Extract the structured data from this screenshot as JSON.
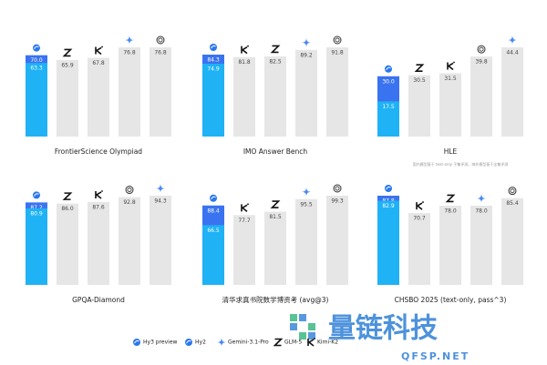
{
  "legend": [
    {
      "name": "Hy3 preview",
      "color": "#3a73f0"
    },
    {
      "name": "Hy2",
      "color": "#1fb2f5"
    },
    {
      "name": "Gemini-3.1-Pro"
    },
    {
      "name": "GLM-5"
    },
    {
      "name": "Kimi-K2"
    }
  ],
  "note": "国内模型基于 text-only 子集评测，海外模型基于全集评测",
  "watermark": {
    "title": "量链科技",
    "subtitle": "QFSP.NET"
  },
  "chart_data": [
    {
      "type": "bar",
      "title": "FrontierScience Olympiad",
      "categories": [
        "Hy3 preview",
        "GLM-5",
        "Kimi-K2",
        "Gemini-3.1-Pro",
        null
      ],
      "series": [
        {
          "name": "Hy3 preview",
          "values": [
            70.0,
            65.9,
            67.8,
            76.8,
            76.8
          ],
          "value_labels": [
            "70.0",
            "65.9",
            "67.8",
            "76.8",
            "76.8"
          ]
        },
        {
          "name": "Hy2",
          "values": [
            63.3,
            null,
            null,
            null,
            null
          ],
          "value_labels": [
            "63.3",
            null,
            null,
            null,
            null
          ]
        }
      ]
    },
    {
      "type": "bar",
      "title": "IMO Answer Bench",
      "categories": [
        "Hy3 preview",
        "Kimi-K2",
        "GLM-5",
        "Gemini-3.1-Pro",
        null
      ],
      "series": [
        {
          "name": "Hy3 preview",
          "values": [
            84.3,
            81.8,
            82.5,
            89.2,
            91.8
          ],
          "value_labels": [
            "84.3",
            "81.8",
            "82.5",
            "89.2",
            "91.8"
          ]
        },
        {
          "name": "Hy2",
          "values": [
            74.9,
            null,
            null,
            null,
            null
          ],
          "value_labels": [
            "74.9",
            null,
            null,
            null,
            null
          ]
        }
      ]
    },
    {
      "type": "bar",
      "title": "HLE",
      "categories": [
        "Hy3 preview",
        "GLM-5",
        "Kimi-K2",
        null,
        "Gemini-3.1-Pro"
      ],
      "series": [
        {
          "name": "Hy3 preview",
          "values": [
            30.0,
            30.5,
            31.5,
            39.8,
            44.4
          ],
          "value_labels": [
            "30.0",
            "30.5",
            "31.5",
            "39.8",
            "44.4"
          ]
        },
        {
          "name": "Hy2",
          "values": [
            17.5,
            null,
            null,
            null,
            null
          ],
          "value_labels": [
            "17.5",
            null,
            null,
            null,
            null
          ]
        }
      ]
    },
    {
      "type": "bar",
      "title": "GPQA-Diamond",
      "categories": [
        "Hy3 preview",
        "GLM-5",
        "Kimi-K2",
        null,
        "Gemini-3.1-Pro"
      ],
      "series": [
        {
          "name": "Hy3 preview",
          "values": [
            87.2,
            86.0,
            87.6,
            92.8,
            94.3
          ],
          "value_labels": [
            "87.2",
            "86.0",
            "87.6",
            "92.8",
            "94.3"
          ]
        },
        {
          "name": "Hy2",
          "values": [
            80.9,
            null,
            null,
            null,
            null
          ],
          "value_labels": [
            "80.9",
            null,
            null,
            null,
            null
          ]
        }
      ]
    },
    {
      "type": "bar",
      "title": "清华求真书院数学博资考 (avg@3)",
      "categories": [
        "Hy3 preview",
        "Kimi-K2",
        "GLM-5",
        "Gemini-3.1-Pro",
        null
      ],
      "series": [
        {
          "name": "Hy3 preview",
          "values": [
            88.4,
            77.7,
            81.5,
            95.5,
            99.3
          ],
          "value_labels": [
            "88.4",
            "77.7",
            "81.5",
            "95.5",
            "99.3"
          ]
        },
        {
          "name": "Hy2",
          "values": [
            66.5,
            null,
            null,
            null,
            null
          ],
          "value_labels": [
            "66.5",
            null,
            null,
            null,
            null
          ]
        }
      ]
    },
    {
      "type": "bar",
      "title": "CHSBO 2025 (text-only, pass^3)",
      "categories": [
        "Hy3 preview",
        "Kimi-K2",
        "GLM-5",
        "Gemini-3.1-Pro",
        null
      ],
      "series": [
        {
          "name": "Hy3 preview",
          "values": [
            87.8,
            70.7,
            78.0,
            78.0,
            85.4
          ],
          "value_labels": [
            "87.8",
            "70.7",
            "78.0",
            "78.0",
            "85.4"
          ]
        },
        {
          "name": "Hy2",
          "values": [
            82.9,
            null,
            null,
            null,
            null
          ],
          "value_labels": [
            "82.9",
            null,
            null,
            null,
            null
          ]
        }
      ]
    }
  ]
}
